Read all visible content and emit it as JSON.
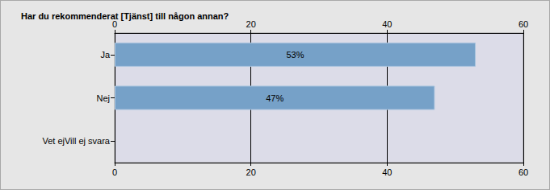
{
  "chart_data": {
    "type": "bar",
    "orientation": "horizontal",
    "title": "Har du rekommenderat [Tjänst] till någon annan?",
    "categories": [
      "Ja",
      "Nej",
      "Vet ejVill ej svara"
    ],
    "values": [
      53,
      47,
      null
    ],
    "value_labels": [
      "53%",
      "47%",
      null
    ],
    "data_labels": true,
    "color": "#76a1c8",
    "xlim": [
      0,
      60
    ],
    "xticks": [
      0,
      20,
      40,
      60
    ],
    "grid": true
  }
}
